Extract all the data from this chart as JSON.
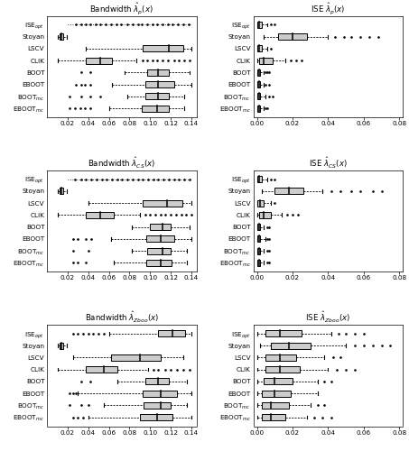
{
  "ylabel_display": [
    "ISE$_{opt}$",
    "Stoyan",
    "LSCV",
    "CLIK",
    "BOOT",
    "EBOOT",
    "BOOT$_{mc}$",
    "EBOOT$_{mc}$"
  ],
  "box_color": "#cccccc",
  "median_color": "#000000",
  "panels": [
    {
      "title": "Bandwidth $\\hat{\\lambda}_p(x)$",
      "xlim": [
        0.0,
        0.145
      ],
      "xticks": [
        0.02,
        0.04,
        0.06,
        0.08,
        0.1,
        0.12,
        0.14
      ],
      "boxes": [
        {
          "q1": null,
          "med": null,
          "q3": null,
          "whislo": 0.02,
          "whishi": 0.14,
          "fliers": [
            0.028,
            0.033,
            0.038,
            0.042,
            0.047,
            0.052,
            0.057,
            0.062,
            0.067,
            0.072,
            0.078,
            0.083,
            0.088,
            0.092,
            0.097,
            0.102,
            0.107,
            0.112,
            0.117,
            0.122,
            0.127,
            0.132,
            0.137
          ]
        },
        {
          "q1": 0.012,
          "med": 0.014,
          "q3": 0.016,
          "whislo": 0.01,
          "whishi": 0.019,
          "fliers": []
        },
        {
          "q1": 0.093,
          "med": 0.118,
          "q3": 0.132,
          "whislo": 0.038,
          "whishi": 0.14,
          "fliers": []
        },
        {
          "q1": 0.038,
          "med": 0.052,
          "q3": 0.063,
          "whislo": 0.01,
          "whishi": 0.087,
          "fliers": [
            0.093,
            0.097,
            0.102,
            0.107,
            0.112,
            0.117,
            0.123,
            0.128,
            0.133,
            0.138
          ]
        },
        {
          "q1": 0.097,
          "med": 0.108,
          "q3": 0.118,
          "whislo": 0.075,
          "whishi": 0.138,
          "fliers": [
            0.033,
            0.042
          ]
        },
        {
          "q1": 0.095,
          "med": 0.108,
          "q3": 0.123,
          "whislo": 0.063,
          "whishi": 0.14,
          "fliers": [
            0.028,
            0.033,
            0.037,
            0.042
          ]
        },
        {
          "q1": 0.095,
          "med": 0.108,
          "q3": 0.118,
          "whislo": 0.078,
          "whishi": 0.133,
          "fliers": [
            0.022,
            0.033,
            0.042,
            0.052
          ]
        },
        {
          "q1": 0.092,
          "med": 0.107,
          "q3": 0.118,
          "whislo": 0.06,
          "whishi": 0.133,
          "fliers": [
            0.022,
            0.027,
            0.032,
            0.037,
            0.042
          ]
        }
      ]
    },
    {
      "title": "ISE $\\hat{\\lambda}_p(x)$",
      "xlim": [
        -0.002,
        0.082
      ],
      "xticks": [
        0.0,
        0.02,
        0.04,
        0.06,
        0.08
      ],
      "boxes": [
        {
          "q1": 0.0,
          "med": 0.001,
          "q3": 0.003,
          "whislo": 0.0,
          "whishi": 0.006,
          "fliers": [
            0.008,
            0.01
          ]
        },
        {
          "q1": 0.012,
          "med": 0.02,
          "q3": 0.028,
          "whislo": 0.004,
          "whishi": 0.04,
          "fliers": [
            0.044,
            0.049,
            0.053,
            0.058,
            0.063,
            0.068
          ]
        },
        {
          "q1": 0.0,
          "med": 0.001,
          "q3": 0.003,
          "whislo": 0.0,
          "whishi": 0.006,
          "fliers": [
            0.008
          ]
        },
        {
          "q1": 0.001,
          "med": 0.004,
          "q3": 0.009,
          "whislo": 0.0,
          "whishi": 0.016,
          "fliers": [
            0.019,
            0.022,
            0.025
          ]
        },
        {
          "q1": 0.0,
          "med": 0.001,
          "q3": 0.002,
          "whislo": 0.0,
          "whishi": 0.004,
          "fliers": [
            0.005,
            0.006,
            0.007
          ]
        },
        {
          "q1": 0.0,
          "med": 0.001,
          "q3": 0.002,
          "whislo": 0.0,
          "whishi": 0.004,
          "fliers": [
            0.005,
            0.007
          ]
        },
        {
          "q1": 0.0,
          "med": 0.001,
          "q3": 0.002,
          "whislo": 0.0,
          "whishi": 0.005,
          "fliers": [
            0.007,
            0.009
          ]
        },
        {
          "q1": 0.0,
          "med": 0.001,
          "q3": 0.002,
          "whislo": 0.0,
          "whishi": 0.004,
          "fliers": [
            0.005,
            0.006
          ]
        }
      ]
    },
    {
      "title": "Bandwidth $\\hat{\\lambda}_{CS}(x)$",
      "xlim": [
        0.0,
        0.145
      ],
      "xticks": [
        0.02,
        0.04,
        0.06,
        0.08,
        0.1,
        0.12,
        0.14
      ],
      "boxes": [
        {
          "q1": null,
          "med": null,
          "q3": null,
          "whislo": 0.02,
          "whishi": 0.14,
          "fliers": [
            0.027,
            0.033,
            0.038,
            0.043,
            0.048,
            0.053,
            0.058,
            0.063,
            0.068,
            0.073,
            0.078,
            0.083,
            0.088,
            0.093,
            0.098,
            0.103,
            0.108,
            0.113,
            0.118,
            0.123,
            0.128,
            0.133,
            0.138
          ]
        },
        {
          "q1": 0.012,
          "med": 0.014,
          "q3": 0.016,
          "whislo": 0.01,
          "whishi": 0.019,
          "fliers": []
        },
        {
          "q1": 0.093,
          "med": 0.116,
          "q3": 0.131,
          "whislo": 0.04,
          "whishi": 0.14,
          "fliers": []
        },
        {
          "q1": 0.038,
          "med": 0.052,
          "q3": 0.065,
          "whislo": 0.01,
          "whishi": 0.09,
          "fliers": [
            0.095,
            0.1,
            0.105,
            0.11,
            0.115,
            0.12,
            0.125,
            0.13,
            0.135,
            0.14
          ]
        },
        {
          "q1": 0.1,
          "med": 0.112,
          "q3": 0.12,
          "whislo": 0.082,
          "whishi": 0.138,
          "fliers": []
        },
        {
          "q1": 0.096,
          "med": 0.11,
          "q3": 0.123,
          "whislo": 0.062,
          "whishi": 0.14,
          "fliers": [
            0.025,
            0.03,
            0.038,
            0.043
          ]
        },
        {
          "q1": 0.097,
          "med": 0.112,
          "q3": 0.12,
          "whislo": 0.082,
          "whishi": 0.136,
          "fliers": [
            0.025,
            0.04
          ]
        },
        {
          "q1": 0.096,
          "med": 0.11,
          "q3": 0.121,
          "whislo": 0.065,
          "whishi": 0.136,
          "fliers": [
            0.025,
            0.03,
            0.038
          ]
        }
      ]
    },
    {
      "title": "ISE $\\hat{\\lambda}_{CS}(x)$",
      "xlim": [
        -0.002,
        0.082
      ],
      "xticks": [
        0.0,
        0.02,
        0.04,
        0.06,
        0.08
      ],
      "boxes": [
        {
          "q1": 0.0,
          "med": 0.001,
          "q3": 0.003,
          "whislo": 0.0,
          "whishi": 0.006,
          "fliers": [
            0.008,
            0.01
          ]
        },
        {
          "q1": 0.01,
          "med": 0.018,
          "q3": 0.026,
          "whislo": 0.003,
          "whishi": 0.037,
          "fliers": [
            0.042,
            0.047,
            0.053,
            0.058,
            0.065,
            0.07
          ]
        },
        {
          "q1": 0.0,
          "med": 0.002,
          "q3": 0.004,
          "whislo": 0.0,
          "whishi": 0.008,
          "fliers": [
            0.01
          ]
        },
        {
          "q1": 0.001,
          "med": 0.004,
          "q3": 0.008,
          "whislo": 0.0,
          "whishi": 0.014,
          "fliers": [
            0.017,
            0.02,
            0.023
          ]
        },
        {
          "q1": 0.0,
          "med": 0.001,
          "q3": 0.002,
          "whislo": 0.0,
          "whishi": 0.004,
          "fliers": [
            0.006,
            0.007
          ]
        },
        {
          "q1": 0.0,
          "med": 0.001,
          "q3": 0.002,
          "whislo": 0.0,
          "whishi": 0.005,
          "fliers": [
            0.006,
            0.007
          ]
        },
        {
          "q1": 0.0,
          "med": 0.001,
          "q3": 0.002,
          "whislo": 0.0,
          "whishi": 0.004,
          "fliers": [
            0.006,
            0.007
          ]
        },
        {
          "q1": 0.0,
          "med": 0.001,
          "q3": 0.002,
          "whislo": 0.0,
          "whishi": 0.004,
          "fliers": [
            0.006,
            0.007
          ]
        }
      ]
    },
    {
      "title": "Bandwidth $\\hat{\\lambda}_{Zboo}(x)$",
      "xlim": [
        0.0,
        0.145
      ],
      "xticks": [
        0.02,
        0.04,
        0.06,
        0.08,
        0.1,
        0.12,
        0.14
      ],
      "boxes": [
        {
          "q1": 0.108,
          "med": 0.122,
          "q3": 0.134,
          "whislo": 0.06,
          "whishi": 0.14,
          "fliers": [
            0.025,
            0.03,
            0.035,
            0.04,
            0.045,
            0.05,
            0.055
          ]
        },
        {
          "q1": 0.012,
          "med": 0.014,
          "q3": 0.016,
          "whislo": 0.01,
          "whishi": 0.019,
          "fliers": []
        },
        {
          "q1": 0.062,
          "med": 0.09,
          "q3": 0.11,
          "whislo": 0.025,
          "whishi": 0.132,
          "fliers": []
        },
        {
          "q1": 0.038,
          "med": 0.055,
          "q3": 0.068,
          "whislo": 0.01,
          "whishi": 0.098,
          "fliers": [
            0.103,
            0.108,
            0.115,
            0.12,
            0.126,
            0.132,
            0.138
          ]
        },
        {
          "q1": 0.095,
          "med": 0.108,
          "q3": 0.118,
          "whislo": 0.068,
          "whishi": 0.136,
          "fliers": [
            0.033,
            0.042
          ]
        },
        {
          "q1": 0.093,
          "med": 0.11,
          "q3": 0.126,
          "whislo": 0.03,
          "whishi": 0.14,
          "fliers": [
            0.022,
            0.025,
            0.028
          ]
        },
        {
          "q1": 0.094,
          "med": 0.11,
          "q3": 0.12,
          "whislo": 0.055,
          "whishi": 0.136,
          "fliers": [
            0.022,
            0.033,
            0.04
          ]
        },
        {
          "q1": 0.09,
          "med": 0.107,
          "q3": 0.122,
          "whislo": 0.04,
          "whishi": 0.14,
          "fliers": [
            0.025,
            0.03,
            0.035
          ]
        }
      ]
    },
    {
      "title": "ISE $\\hat{\\lambda}_{Zboo}(x)$",
      "xlim": [
        -0.002,
        0.082
      ],
      "xticks": [
        0.0,
        0.02,
        0.04,
        0.06,
        0.08
      ],
      "boxes": [
        {
          "q1": 0.005,
          "med": 0.013,
          "q3": 0.025,
          "whislo": 0.0,
          "whishi": 0.042,
          "fliers": [
            0.046,
            0.05,
            0.055,
            0.06
          ]
        },
        {
          "q1": 0.008,
          "med": 0.018,
          "q3": 0.03,
          "whislo": 0.002,
          "whishi": 0.05,
          "fliers": [
            0.055,
            0.06,
            0.065,
            0.07,
            0.075
          ]
        },
        {
          "q1": 0.005,
          "med": 0.013,
          "q3": 0.022,
          "whislo": 0.0,
          "whishi": 0.038,
          "fliers": [
            0.043,
            0.047
          ]
        },
        {
          "q1": 0.005,
          "med": 0.013,
          "q3": 0.024,
          "whislo": 0.0,
          "whishi": 0.04,
          "fliers": [
            0.045,
            0.05,
            0.055
          ]
        },
        {
          "q1": 0.004,
          "med": 0.01,
          "q3": 0.02,
          "whislo": 0.0,
          "whishi": 0.034,
          "fliers": [
            0.038,
            0.042
          ]
        },
        {
          "q1": 0.003,
          "med": 0.01,
          "q3": 0.019,
          "whislo": 0.0,
          "whishi": 0.034,
          "fliers": []
        },
        {
          "q1": 0.003,
          "med": 0.008,
          "q3": 0.018,
          "whislo": 0.0,
          "whishi": 0.03,
          "fliers": [
            0.034,
            0.038
          ]
        },
        {
          "q1": 0.003,
          "med": 0.008,
          "q3": 0.016,
          "whislo": 0.0,
          "whishi": 0.028,
          "fliers": [
            0.032,
            0.037,
            0.042
          ]
        }
      ]
    }
  ]
}
